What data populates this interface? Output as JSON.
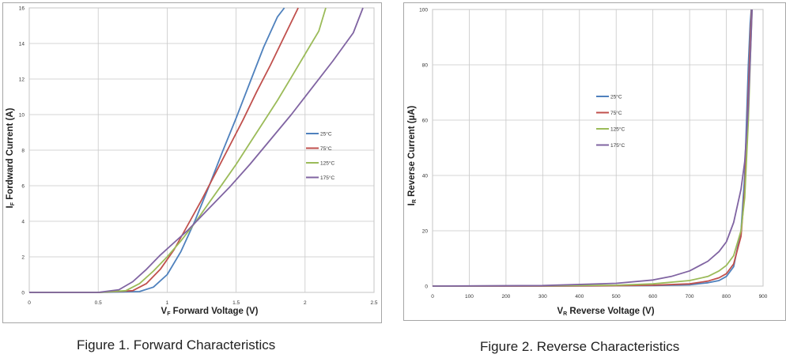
{
  "charts": [
    {
      "type": "line",
      "title": "Forward Characteristics",
      "xlabel_sub": "F",
      "xlabel_prefix": "V",
      "xlabel_text": " Forward Voltage (V)",
      "ylabel_sub": "F",
      "ylabel_prefix": "I",
      "ylabel_text": " Fordward Current (A)",
      "xlim": [
        0,
        2.5
      ],
      "ylim": [
        0,
        16
      ],
      "xticks": [
        "0",
        "0.5",
        "1",
        "1.5",
        "2",
        "2.5"
      ],
      "yticks": [
        "0",
        "2",
        "4",
        "6",
        "8",
        "10",
        "12",
        "14",
        "16"
      ],
      "legend_position": "right",
      "series": [
        {
          "name": "25°C",
          "color": "#4f81bd",
          "x": [
            0,
            0.5,
            0.8,
            0.9,
            1.0,
            1.1,
            1.2,
            1.3,
            1.4,
            1.5,
            1.6,
            1.7,
            1.8,
            1.85
          ],
          "y": [
            0,
            0,
            0.05,
            0.3,
            1.0,
            2.3,
            4.0,
            5.9,
            7.9,
            9.8,
            11.8,
            13.8,
            15.5,
            16
          ]
        },
        {
          "name": "75°C",
          "color": "#c0504d",
          "x": [
            0,
            0.5,
            0.75,
            0.85,
            0.95,
            1.05,
            1.15,
            1.25,
            1.35,
            1.45,
            1.55,
            1.65,
            1.75,
            1.85,
            1.95
          ],
          "y": [
            0,
            0,
            0.1,
            0.5,
            1.3,
            2.4,
            3.8,
            5.2,
            6.7,
            8.2,
            9.7,
            11.3,
            12.8,
            14.4,
            16
          ]
        },
        {
          "name": "125°C",
          "color": "#9bbb59",
          "x": [
            0,
            0.5,
            0.7,
            0.8,
            0.9,
            1.0,
            1.1,
            1.2,
            1.3,
            1.4,
            1.5,
            1.6,
            1.7,
            1.8,
            1.9,
            2.0,
            2.1,
            2.15
          ],
          "y": [
            0,
            0,
            0.1,
            0.5,
            1.2,
            2.0,
            2.9,
            3.9,
            5.0,
            6.1,
            7.2,
            8.4,
            9.6,
            10.8,
            12.1,
            13.4,
            14.7,
            16
          ]
        },
        {
          "name": "175°C",
          "color": "#8064a2",
          "x": [
            0,
            0.5,
            0.65,
            0.75,
            0.85,
            0.95,
            1.05,
            1.15,
            1.3,
            1.45,
            1.6,
            1.75,
            1.9,
            2.05,
            2.2,
            2.35,
            2.42
          ],
          "y": [
            0,
            0,
            0.15,
            0.6,
            1.3,
            2.1,
            2.8,
            3.5,
            4.7,
            5.9,
            7.2,
            8.6,
            10.0,
            11.5,
            13.0,
            14.6,
            16
          ]
        }
      ]
    },
    {
      "type": "line",
      "title": "Reverse Characteristics",
      "xlabel_sub": "R",
      "xlabel_prefix": "V",
      "xlabel_text": " Reverse Voltage (V)",
      "ylabel_sub": "R",
      "ylabel_prefix": "I",
      "ylabel_text": " Reverse Current (µA)",
      "xlim": [
        0,
        900
      ],
      "ylim": [
        0,
        100
      ],
      "xticks": [
        "0",
        "100",
        "200",
        "300",
        "400",
        "500",
        "600",
        "700",
        "800",
        "900"
      ],
      "yticks": [
        "0",
        "20",
        "40",
        "60",
        "80",
        "100"
      ],
      "legend_position": "upper-center",
      "series": [
        {
          "name": "25°C",
          "color": "#4f81bd",
          "x": [
            0,
            300,
            500,
            600,
            700,
            750,
            780,
            800,
            820,
            840,
            850,
            860,
            865,
            868
          ],
          "y": [
            0,
            0,
            0.1,
            0.2,
            0.5,
            1.2,
            2.0,
            3.5,
            7,
            20,
            40,
            80,
            95,
            100
          ]
        },
        {
          "name": "75°C",
          "color": "#c0504d",
          "x": [
            0,
            300,
            500,
            600,
            700,
            750,
            780,
            800,
            820,
            840,
            850,
            860,
            866,
            869
          ],
          "y": [
            0,
            0,
            0.15,
            0.3,
            0.8,
            1.8,
            3.0,
            4.5,
            8,
            18,
            35,
            70,
            92,
            100
          ]
        },
        {
          "name": "125°C",
          "color": "#9bbb59",
          "x": [
            0,
            300,
            500,
            600,
            700,
            750,
            780,
            800,
            820,
            840,
            850,
            860,
            866,
            870
          ],
          "y": [
            0,
            0.1,
            0.3,
            0.8,
            2.0,
            3.5,
            5.5,
            7.5,
            11,
            20,
            32,
            60,
            85,
            100
          ]
        },
        {
          "name": "175°C",
          "color": "#8064a2",
          "x": [
            0,
            300,
            500,
            600,
            650,
            700,
            750,
            780,
            800,
            820,
            840,
            850,
            860,
            866,
            870
          ],
          "y": [
            0,
            0.2,
            1.0,
            2.2,
            3.5,
            5.5,
            9,
            12.5,
            16,
            23,
            35,
            45,
            65,
            85,
            100
          ]
        }
      ]
    }
  ],
  "captions": {
    "fig1": "Figure 1. Forward Characteristics",
    "fig2": "Figure 2. Reverse Characteristics"
  }
}
